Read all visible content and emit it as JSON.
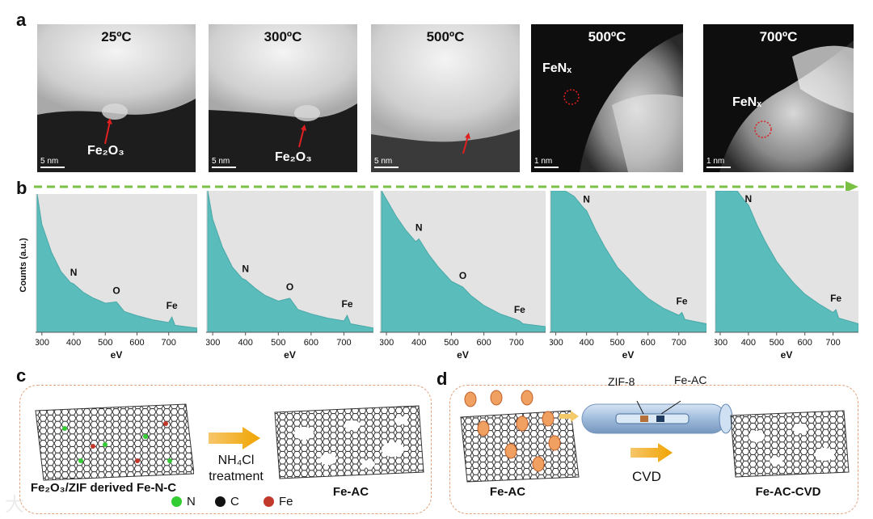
{
  "panel_labels": {
    "a": "a",
    "b": "b",
    "c": "c",
    "d": "d"
  },
  "tem_images": [
    {
      "temperature": "25ºC",
      "annotation": "Fe₂O₃",
      "scale": "5 nm"
    },
    {
      "temperature": "300ºC",
      "annotation": "Fe₂O₃",
      "scale": "5 nm"
    },
    {
      "temperature": "500ºC",
      "annotation": "",
      "scale": "5 nm"
    },
    {
      "temperature": "500ºC",
      "annotation": "FeNₓ",
      "scale": "1 nm"
    },
    {
      "temperature": "700ºC",
      "annotation": "FeNₓ",
      "scale": "1 nm"
    }
  ],
  "chart_data": [
    {
      "type": "area",
      "xlabel": "eV",
      "ylabel": "Counts (a.u.)",
      "x_ticks": [
        300,
        400,
        500,
        600,
        700
      ],
      "xlim": [
        280,
        790
      ],
      "peaks": [
        {
          "label": "N",
          "x": 400
        },
        {
          "label": "O",
          "x": 535
        },
        {
          "label": "Fe",
          "x": 710
        }
      ],
      "series": [
        {
          "x": [
            285,
            300,
            330,
            360,
            390,
            400,
            430,
            460,
            500,
            535,
            560,
            600,
            650,
            700,
            710,
            720,
            790
          ],
          "y": [
            100,
            78,
            58,
            44,
            36,
            35,
            29,
            25,
            21,
            22,
            15,
            12,
            9,
            7,
            11,
            5,
            3
          ]
        }
      ]
    },
    {
      "type": "area",
      "xlabel": "eV",
      "ylabel": "",
      "x_ticks": [
        300,
        400,
        500,
        600,
        700
      ],
      "xlim": [
        280,
        790
      ],
      "peaks": [
        {
          "label": "N",
          "x": 400
        },
        {
          "label": "O",
          "x": 535
        },
        {
          "label": "Fe",
          "x": 710
        }
      ],
      "series": [
        {
          "x": [
            285,
            300,
            330,
            360,
            390,
            400,
            430,
            460,
            500,
            535,
            560,
            600,
            650,
            700,
            710,
            720,
            790
          ],
          "y": [
            100,
            80,
            60,
            46,
            38,
            37,
            31,
            26,
            22,
            24,
            16,
            13,
            10,
            8,
            12,
            6,
            3
          ]
        }
      ]
    },
    {
      "type": "area",
      "xlabel": "eV",
      "ylabel": "",
      "x_ticks": [
        300,
        400,
        500,
        600,
        700
      ],
      "xlim": [
        280,
        790
      ],
      "peaks": [
        {
          "label": "N",
          "x": 400
        },
        {
          "label": "O",
          "x": 535
        },
        {
          "label": "Fe",
          "x": 710
        }
      ],
      "series": [
        {
          "x": [
            285,
            300,
            330,
            360,
            390,
            400,
            430,
            460,
            500,
            535,
            560,
            600,
            650,
            700,
            710,
            720,
            790
          ],
          "y": [
            100,
            94,
            82,
            72,
            64,
            66,
            55,
            46,
            36,
            32,
            26,
            19,
            13,
            9,
            8,
            6,
            4
          ]
        }
      ]
    },
    {
      "type": "area",
      "xlabel": "eV",
      "ylabel": "",
      "x_ticks": [
        300,
        400,
        500,
        600,
        700
      ],
      "xlim": [
        280,
        790
      ],
      "peaks": [
        {
          "label": "N",
          "x": 400
        },
        {
          "label": "Fe",
          "x": 710
        }
      ],
      "series": [
        {
          "x": [
            285,
            300,
            330,
            360,
            390,
            400,
            430,
            460,
            500,
            535,
            560,
            600,
            650,
            700,
            710,
            720,
            790
          ],
          "y": [
            100,
            100,
            100,
            96,
            88,
            86,
            72,
            60,
            46,
            38,
            32,
            24,
            17,
            12,
            14,
            9,
            6
          ]
        }
      ]
    },
    {
      "type": "area",
      "xlabel": "eV",
      "ylabel": "",
      "x_ticks": [
        300,
        400,
        500,
        600,
        700
      ],
      "xlim": [
        280,
        790
      ],
      "peaks": [
        {
          "label": "N",
          "x": 400
        },
        {
          "label": "Fe",
          "x": 710
        }
      ],
      "series": [
        {
          "x": [
            285,
            300,
            330,
            360,
            390,
            400,
            430,
            460,
            500,
            535,
            560,
            600,
            650,
            700,
            710,
            720,
            790
          ],
          "y": [
            100,
            100,
            100,
            100,
            92,
            90,
            76,
            64,
            50,
            41,
            35,
            27,
            20,
            14,
            16,
            10,
            6
          ]
        }
      ]
    }
  ],
  "panel_c": {
    "caption_left": "Fe₂O₃/ZIF derived Fe-N-C",
    "arrow_text_line1": "NH₄Cl",
    "arrow_text_line2": "treatment",
    "caption_right": "Fe-AC",
    "legend": [
      {
        "label": "N",
        "color": "#33cc33"
      },
      {
        "label": "C",
        "color": "#111111"
      },
      {
        "label": "Fe",
        "color": "#c0392b"
      }
    ]
  },
  "panel_d": {
    "tube_label_left": "ZIF-8",
    "tube_label_right": "Fe-AC",
    "arrow_text": "CVD",
    "caption_left": "Fe-AC",
    "caption_right": "Fe-AC-CVD"
  },
  "watermark": "大"
}
